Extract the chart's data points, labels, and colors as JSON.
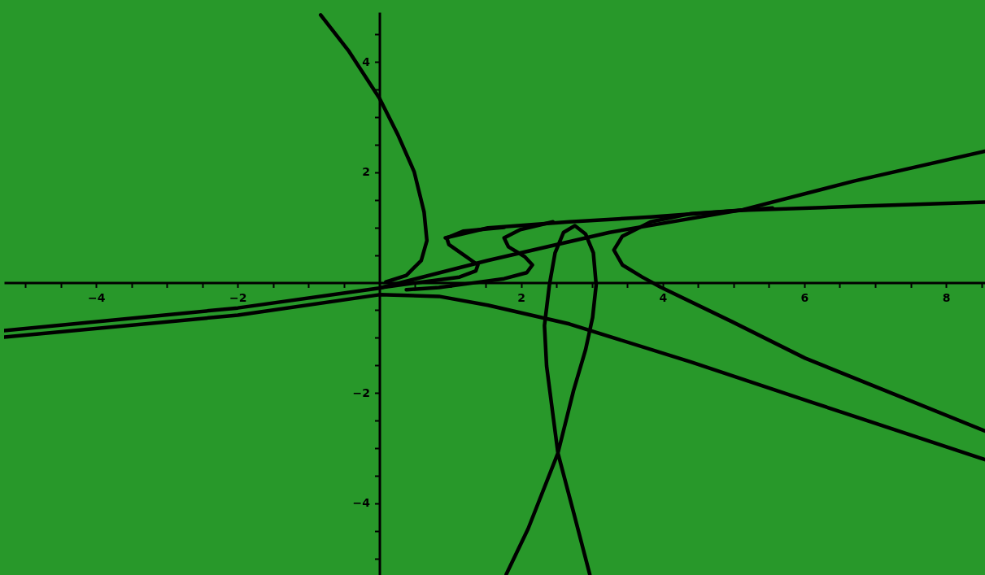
{
  "chart_data": {
    "type": "line",
    "grid": false,
    "line_style": "solid",
    "xlim": [
      -5.3,
      8.55
    ],
    "ylim": [
      -5.3,
      4.9
    ],
    "xticks": [
      {
        "value": -5,
        "label": null
      },
      {
        "value": -4.5,
        "label": null
      },
      {
        "value": -4,
        "label": "−4"
      },
      {
        "value": -3.5,
        "label": null
      },
      {
        "value": -3,
        "label": null
      },
      {
        "value": -2.5,
        "label": null
      },
      {
        "value": -2,
        "label": "−2"
      },
      {
        "value": -1.5,
        "label": null
      },
      {
        "value": -1,
        "label": null
      },
      {
        "value": -0.5,
        "label": null
      },
      {
        "value": 0.5,
        "label": null
      },
      {
        "value": 1,
        "label": null
      },
      {
        "value": 1.5,
        "label": null
      },
      {
        "value": 2,
        "label": "2"
      },
      {
        "value": 2.5,
        "label": null
      },
      {
        "value": 3,
        "label": null
      },
      {
        "value": 3.5,
        "label": null
      },
      {
        "value": 4,
        "label": "4"
      },
      {
        "value": 4.5,
        "label": null
      },
      {
        "value": 5,
        "label": null
      },
      {
        "value": 5.5,
        "label": null
      },
      {
        "value": 6,
        "label": "6"
      },
      {
        "value": 6.5,
        "label": null
      },
      {
        "value": 7,
        "label": null
      },
      {
        "value": 7.5,
        "label": null
      },
      {
        "value": 8,
        "label": "8"
      },
      {
        "value": 8.5,
        "label": null
      }
    ],
    "yticks": [
      {
        "value": -5,
        "label": null
      },
      {
        "value": -4.5,
        "label": null
      },
      {
        "value": -4,
        "label": "−4"
      },
      {
        "value": -3.5,
        "label": null
      },
      {
        "value": -3,
        "label": null
      },
      {
        "value": -2.5,
        "label": null
      },
      {
        "value": -2,
        "label": "−2"
      },
      {
        "value": -1.5,
        "label": null
      },
      {
        "value": -1,
        "label": null
      },
      {
        "value": -0.5,
        "label": null
      },
      {
        "value": 0.5,
        "label": null
      },
      {
        "value": 1,
        "label": null
      },
      {
        "value": 1.5,
        "label": null
      },
      {
        "value": 2,
        "label": "2"
      },
      {
        "value": 2.5,
        "label": null
      },
      {
        "value": 3,
        "label": null
      },
      {
        "value": 3.5,
        "label": null
      },
      {
        "value": 4,
        "label": "4"
      },
      {
        "value": 4.5,
        "label": null
      }
    ],
    "series": [
      {
        "color": "#000000",
        "x": [
          -0.83,
          -0.43,
          0,
          0.26,
          0.49,
          0.63,
          0.67,
          0.59,
          0.38,
          0.09
        ],
        "values": [
          4.85,
          4.19,
          3.34,
          2.68,
          2.01,
          1.28,
          0.76,
          0.4,
          0.13,
          0.01
        ]
      },
      {
        "color": "#000000",
        "x": [
          0.93,
          1.53,
          2.68,
          3.83,
          5.13,
          6.7,
          8.55
        ],
        "values": [
          0.81,
          0.99,
          1.1,
          1.19,
          1.31,
          1.38,
          1.46
        ]
      },
      {
        "color": "#000000",
        "x": [
          1.76,
          1.18,
          0.95,
          0.98,
          1.18,
          1.39,
          1.36,
          1.13,
          0.72,
          0.32,
          0.03
        ],
        "values": [
          1.0,
          0.93,
          0.81,
          0.69,
          0.51,
          0.32,
          0.21,
          0.1,
          0.03,
          -0.04,
          -0.09
        ]
      },
      {
        "color": "#000000",
        "x": [
          2.45,
          1.99,
          1.76,
          1.82,
          2.05,
          2.16,
          2.08,
          1.76,
          1.3,
          0.84,
          0.38
        ],
        "values": [
          1.1,
          0.96,
          0.81,
          0.65,
          0.47,
          0.32,
          0.18,
          0.07,
          -0.01,
          -0.09,
          -0.13
        ]
      },
      {
        "color": "#000000",
        "x": [
          5.55,
          4.4,
          3.83,
          3.43,
          3.31,
          3.43,
          3.71,
          3.98,
          4.98,
          6.01,
          7.28,
          8.55
        ],
        "values": [
          1.35,
          1.25,
          1.1,
          0.84,
          0.59,
          0.32,
          0.1,
          -0.09,
          -0.71,
          -1.37,
          -2.03,
          -2.69
        ]
      },
      {
        "color": "#000000",
        "x": [
          1.79,
          2.1,
          2.52,
          2.74,
          2.91,
          3.01,
          3.06,
          3.02,
          2.91,
          2.76,
          2.6,
          2.48,
          2.4,
          2.33,
          2.36,
          2.45,
          2.52,
          2.74,
          2.97
        ],
        "values": [
          -5.29,
          -4.46,
          -3.09,
          -1.96,
          -1.22,
          -0.63,
          -0.04,
          0.54,
          0.88,
          1.03,
          0.91,
          0.54,
          -0.04,
          -0.78,
          -1.51,
          -2.4,
          -3.09,
          -4.16,
          -5.29
        ]
      },
      {
        "color": "#000000",
        "x": [
          -5.3,
          -2,
          0,
          0.84,
          1.53,
          2.68,
          4.4,
          6.13,
          8.55
        ],
        "values": [
          -0.99,
          -0.59,
          -0.22,
          -0.25,
          -0.41,
          -0.75,
          -1.44,
          -2.18,
          -3.21
        ]
      },
      {
        "color": "#000000",
        "x": [
          -5.3,
          -2,
          0,
          1.53,
          3.25,
          5.13,
          6.7,
          8.55
        ],
        "values": [
          -0.87,
          -0.46,
          -0.1,
          0.4,
          0.91,
          1.32,
          1.84,
          2.38
        ]
      }
    ]
  }
}
